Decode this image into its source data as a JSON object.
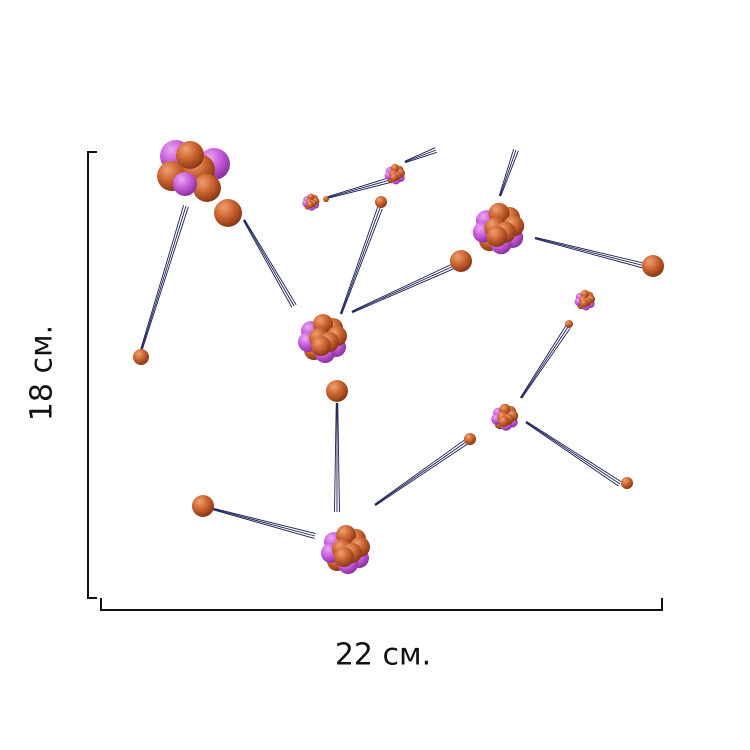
{
  "dimensions": {
    "width_label": "22 см.",
    "height_label": "18 см."
  },
  "colors": {
    "neutron": "#c8602e",
    "proton": "#c65ad8",
    "track": "#1a1f55",
    "frame": "#111111"
  }
}
